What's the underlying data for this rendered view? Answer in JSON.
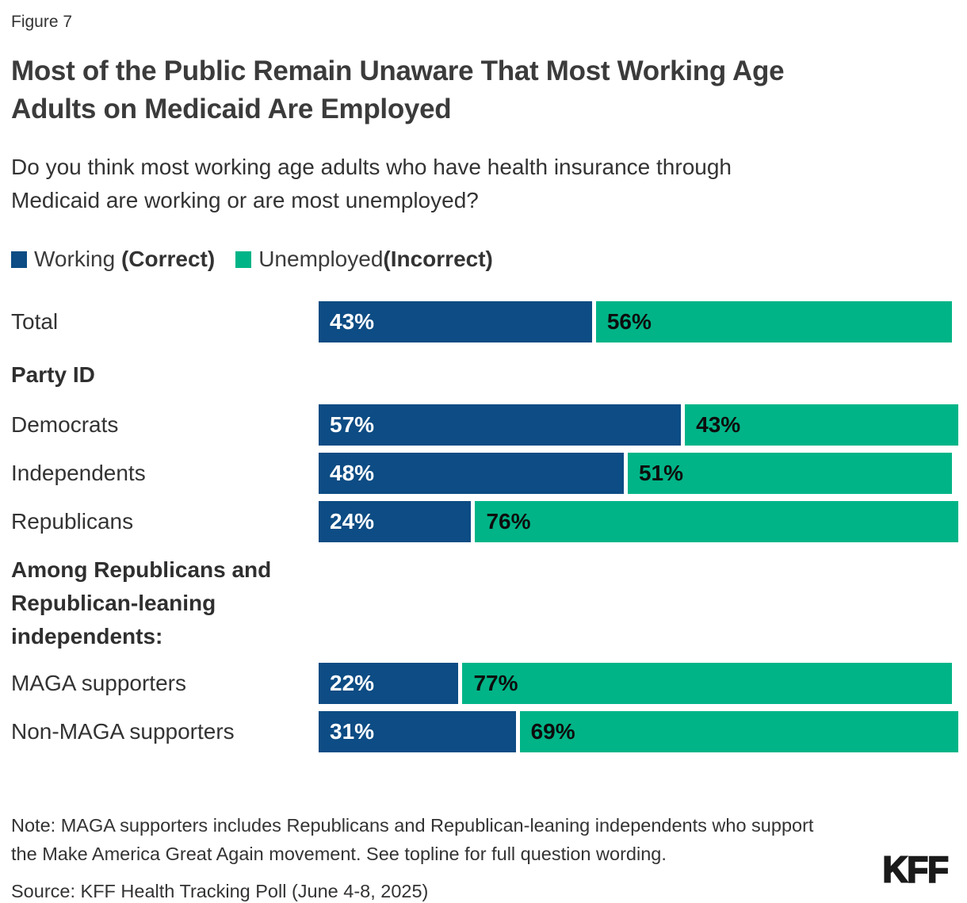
{
  "figure_label": "Figure 7",
  "title": "Most of the Public Remain Unaware That Most Working Age Adults on Medicaid Are Employed",
  "subtitle": "Do you think most working age adults who have health insurance through Medicaid are working or are most unemployed?",
  "legend": [
    {
      "text": "Working ",
      "qualifier": "(Correct)",
      "color": "#0D4C84",
      "key": "working"
    },
    {
      "text": "Unemployed",
      "qualifier": "(Incorrect)",
      "color": "#00B487",
      "key": "unemployed"
    }
  ],
  "colors": {
    "working": "#0D4C84",
    "unemployed": "#00B487",
    "pct_on_working": "#FFFFFF",
    "pct_on_unemployed": "#0D0D0D"
  },
  "rows": [
    {
      "type": "bar",
      "label": "Total",
      "working": 43,
      "unemployed": 56
    },
    {
      "type": "header",
      "label": "Party ID"
    },
    {
      "type": "bar",
      "label": "Democrats",
      "working": 57,
      "unemployed": 43
    },
    {
      "type": "bar",
      "label": "Independents",
      "working": 48,
      "unemployed": 51
    },
    {
      "type": "bar",
      "label": "Republicans",
      "working": 24,
      "unemployed": 76
    },
    {
      "type": "header",
      "label": "Among Republicans and Republican-leaning independents:"
    },
    {
      "type": "bar",
      "label": "MAGA supporters",
      "working": 22,
      "unemployed": 77
    },
    {
      "type": "bar",
      "label": "Non-MAGA supporters",
      "working": 31,
      "unemployed": 69
    }
  ],
  "note": "Note: MAGA supporters includes Republicans and Republican-leaning independents who support the Make America Great Again movement. See topline for full question wording.",
  "source": "Source: KFF Health Tracking Poll (June 4-8, 2025)",
  "logo_text": "KFF",
  "chart_data": {
    "type": "bar",
    "orientation": "horizontal",
    "stacked": true,
    "title": "Most of the Public Remain Unaware That Most Working Age Adults on Medicaid Are Employed",
    "question": "Do you think most working age adults who have health insurance through Medicaid are working or are most unemployed?",
    "categories": [
      "Total",
      "Democrats",
      "Independents",
      "Republicans",
      "MAGA supporters",
      "Non-MAGA supporters"
    ],
    "groups": [
      {
        "header": "Party ID",
        "categories": [
          "Democrats",
          "Independents",
          "Republicans"
        ]
      },
      {
        "header": "Among Republicans and Republican-leaning independents:",
        "categories": [
          "MAGA supporters",
          "Non-MAGA supporters"
        ]
      }
    ],
    "series": [
      {
        "name": "Working (Correct)",
        "color": "#0D4C84",
        "values": [
          43,
          57,
          48,
          24,
          22,
          31
        ]
      },
      {
        "name": "Unemployed (Incorrect)",
        "color": "#00B487",
        "values": [
          56,
          43,
          51,
          76,
          77,
          69
        ]
      }
    ],
    "value_unit": "%",
    "xlim": [
      0,
      100
    ],
    "legend_position": "top",
    "grid": false
  }
}
